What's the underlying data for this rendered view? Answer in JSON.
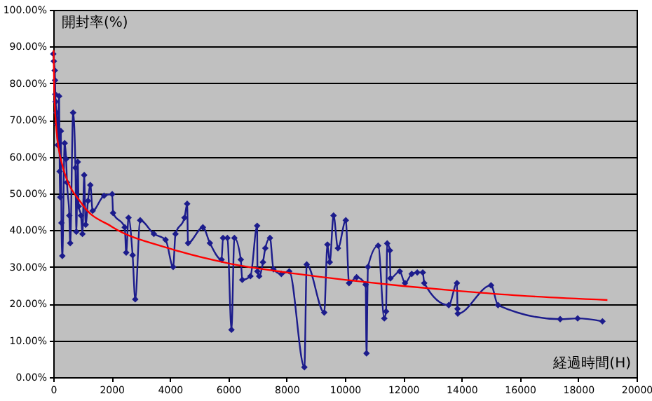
{
  "chart_data": {
    "type": "line",
    "xlabel": "経過時間(H)",
    "ylabel": "開封率(%)",
    "xlim": [
      0,
      20000
    ],
    "xticks": [
      0,
      2000,
      4000,
      6000,
      8000,
      10000,
      12000,
      14000,
      16000,
      18000,
      20000
    ],
    "ylim": [
      0,
      100
    ],
    "yticks": [
      {
        "value": 0,
        "label": "0.00%"
      },
      {
        "value": 10,
        "label": "10.00%"
      },
      {
        "value": 20,
        "label": "20.00%"
      },
      {
        "value": 30,
        "label": "30.00%"
      },
      {
        "value": 40,
        "label": "40.00%"
      },
      {
        "value": 50,
        "label": "50.00%"
      },
      {
        "value": 60,
        "label": "60.00%"
      },
      {
        "value": 70,
        "label": "70.00%"
      },
      {
        "value": 80,
        "label": "80.00%"
      },
      {
        "value": 90,
        "label": "90.00%"
      },
      {
        "value": 100,
        "label": "100.00%"
      }
    ],
    "grid": "y",
    "legend": false,
    "series": [
      {
        "color": "#1c1c8c",
        "marker": "diamond",
        "x": [
          0,
          20,
          50,
          60,
          70,
          80,
          110,
          130,
          150,
          200,
          220,
          240,
          260,
          280,
          310,
          390,
          440,
          470,
          550,
          580,
          680,
          760,
          790,
          840,
          870,
          950,
          1000,
          1060,
          1110,
          1190,
          1270,
          1350,
          1740,
          2020,
          2050,
          2450,
          2500,
          2580,
          2720,
          2810,
          2980,
          3450,
          3850,
          4110,
          4190,
          4500,
          4590,
          4620,
          5130,
          5370,
          5770,
          5820,
          5970,
          6110,
          6210,
          6430,
          6480,
          6760,
          6990,
          7000,
          7060,
          7190,
          7270,
          7430,
          7550,
          7820,
          8090,
          8610,
          8690,
          9290,
          9400,
          9480,
          9610,
          9760,
          10030,
          10140,
          10400,
          10710,
          10740,
          10790,
          11140,
          11350,
          11410,
          11450,
          11540,
          11560,
          11880,
          12060,
          12290,
          12480,
          12670,
          12720,
          13560,
          13840,
          13860,
          13870,
          15010,
          15250,
          17380,
          17980,
          18830
        ],
        "values": [
          88,
          86,
          83.5,
          80.8,
          77,
          75,
          72,
          68.8,
          63.2,
          76.5,
          56,
          49,
          67,
          42,
          33,
          63.7,
          59.4,
          53,
          44,
          36.5,
          72,
          57,
          39.6,
          58.6,
          46.5,
          44,
          39,
          55,
          41.5,
          48,
          52.3,
          45.3,
          49.4,
          49.8,
          44.7,
          40.8,
          33.9,
          43.4,
          33.2,
          21.2,
          42.7,
          39,
          37.4,
          30,
          39,
          43.4,
          47.2,
          36.5,
          40.8,
          36.5,
          32,
          37.9,
          37.9,
          12.9,
          37.9,
          32,
          26.5,
          27.5,
          41.2,
          28.8,
          27.5,
          31.3,
          35.1,
          37.9,
          29.4,
          28.1,
          28.8,
          2.7,
          30.7,
          17.6,
          36.1,
          31.3,
          44,
          35.1,
          42.7,
          25.6,
          27.2,
          25.2,
          6.5,
          30,
          35.8,
          16,
          17.9,
          36.4,
          34.5,
          26.9,
          28.8,
          25.6,
          28.1,
          28.5,
          28.5,
          25.6,
          19.6,
          25.6,
          18.6,
          17.3,
          25,
          19.6,
          15.8,
          16,
          15.2
        ]
      },
      {
        "color": "#ff0000",
        "marker": "none",
        "x": [
          10,
          30,
          100,
          300,
          1000,
          2000,
          4000,
          6000,
          8000,
          10000,
          12000,
          14000,
          16000,
          19000
        ],
        "values": [
          89,
          79,
          68,
          58,
          47,
          41,
          35,
          31,
          28.5,
          26.5,
          24.8,
          23.4,
          22.2,
          21
        ]
      }
    ]
  }
}
